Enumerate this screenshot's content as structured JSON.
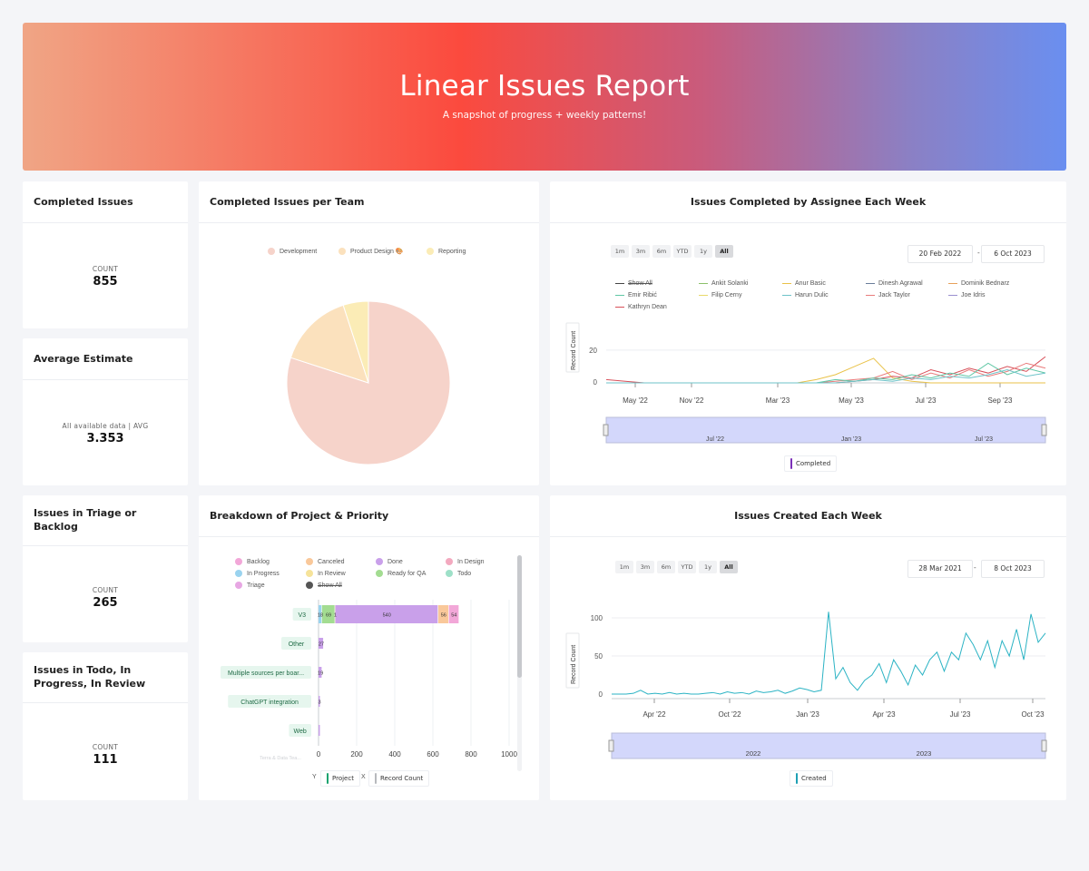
{
  "header": {
    "title": "Linear Issues Report",
    "subtitle": "A snapshot of progress + weekly patterns!"
  },
  "kpis": {
    "completed": {
      "title": "Completed Issues",
      "label": "COUNT",
      "value": "855"
    },
    "avg_estimate": {
      "title": "Average Estimate",
      "label": "All available data  |  AVG",
      "value": "3.353"
    },
    "triage": {
      "title": "Issues in Triage or Backlog",
      "label": "COUNT",
      "value": "265"
    },
    "todo": {
      "title": "Issues in Todo, In Progress, In Review",
      "label": "COUNT",
      "value": "111"
    }
  },
  "pie": {
    "title": "Completed Issues per Team",
    "legend": [
      "Development",
      "Product Design 🎨",
      "Reporting"
    ],
    "colors": [
      "#f6d3ca",
      "#fbe1bd",
      "#fbecb6"
    ],
    "chart_data": {
      "type": "pie",
      "labels": [
        "Development",
        "Product Design 🎨",
        "Reporting"
      ],
      "values": [
        80,
        15,
        5
      ]
    }
  },
  "assignee": {
    "title": "Issues Completed by Assignee Each Week",
    "range_buttons": [
      "1m",
      "3m",
      "6m",
      "YTD",
      "1y",
      "All"
    ],
    "date_from": "20 Feb 2022",
    "date_sep": "-",
    "date_to": "6 Oct 2023",
    "legend": [
      {
        "name": "Show All",
        "color": "#444444"
      },
      {
        "name": "Ankit Solanki",
        "color": "#8cc06a"
      },
      {
        "name": "Anur Basic",
        "color": "#e9c248"
      },
      {
        "name": "Dinesh Agrawal",
        "color": "#6a7d9a"
      },
      {
        "name": "Dominik Bednarz",
        "color": "#e7a05a"
      },
      {
        "name": "Emir Ribić",
        "color": "#5fc7a5"
      },
      {
        "name": "Filip Cerny",
        "color": "#e9d96a"
      },
      {
        "name": "Harun Dulic",
        "color": "#6dc3c9"
      },
      {
        "name": "Jack Taylor",
        "color": "#e97b7b"
      },
      {
        "name": "Joe Idris",
        "color": "#9a8fd0"
      },
      {
        "name": "Kathryn Dean",
        "color": "#d8505a"
      }
    ],
    "ylabel": "Record Count",
    "yticks": [
      "20",
      "0"
    ],
    "xticks": [
      "May '22",
      "Nov '22",
      "Mar '23",
      "May '23",
      "Jul '23",
      "Sep '23"
    ],
    "navigator_ticks": [
      "Jul '22",
      "Jan '23",
      "Jul '23"
    ],
    "series_chip": "Completed",
    "chart_data": {
      "type": "line",
      "ylim": [
        0,
        30
      ],
      "note": "weekly counts per assignee, Feb 2022 – Oct 2023",
      "series": [
        {
          "name": "Anur Basic",
          "values": [
            0,
            0,
            0,
            0,
            0,
            0,
            0,
            0,
            0,
            0,
            0,
            2,
            5,
            10,
            15,
            3,
            1,
            0,
            0,
            0,
            0,
            0,
            0,
            0
          ]
        },
        {
          "name": "Kathryn Dean",
          "values": [
            2,
            1,
            0,
            0,
            0,
            0,
            0,
            0,
            0,
            0,
            0,
            0,
            0,
            1,
            2,
            4,
            3,
            8,
            5,
            9,
            6,
            10,
            7,
            16
          ]
        },
        {
          "name": "Jack Taylor",
          "values": [
            0,
            0,
            0,
            0,
            0,
            0,
            0,
            0,
            0,
            0,
            0,
            0,
            1,
            2,
            3,
            7,
            2,
            6,
            3,
            8,
            4,
            7,
            12,
            9
          ]
        },
        {
          "name": "Emir Ribić",
          "values": [
            0,
            0,
            0,
            0,
            0,
            0,
            0,
            0,
            0,
            0,
            0,
            0,
            2,
            1,
            3,
            2,
            5,
            3,
            6,
            4,
            12,
            5,
            9,
            6
          ]
        },
        {
          "name": "Harun Dulic",
          "values": [
            0,
            0,
            0,
            0,
            0,
            0,
            0,
            0,
            0,
            0,
            0,
            0,
            0,
            1,
            2,
            1,
            3,
            2,
            4,
            3,
            5,
            8,
            4,
            6
          ]
        }
      ]
    }
  },
  "breakdown": {
    "title": "Breakdown of Project & Priority",
    "legend": [
      {
        "name": "Backlog",
        "color": "#f2a7d8"
      },
      {
        "name": "Canceled",
        "color": "#f9c89a"
      },
      {
        "name": "Done",
        "color": "#c9a0ea"
      },
      {
        "name": "In Design",
        "color": "#f3a9bf"
      },
      {
        "name": "In Progress",
        "color": "#9ad3ef"
      },
      {
        "name": "In Review",
        "color": "#f6e39a"
      },
      {
        "name": "Ready for QA",
        "color": "#a3dc91"
      },
      {
        "name": "Todo",
        "color": "#9ee0c8"
      },
      {
        "name": "Triage",
        "color": "#e7a7e3"
      },
      {
        "name": "Show All",
        "color": "#555555"
      }
    ],
    "projects": [
      "V3",
      "Other",
      "Multiple sources per boar...",
      "ChatGPT integration",
      "Web"
    ],
    "xticks": [
      "0",
      "200",
      "400",
      "600",
      "800",
      "1000"
    ],
    "v3_labels": [
      "18",
      "69",
      "1",
      "540",
      "56",
      "54"
    ],
    "other_label": "27",
    "multi_label": "19",
    "chatgpt_label": "3",
    "axis_y_label": "Y",
    "axis_y_chip": "Project",
    "axis_x_label": "X",
    "axis_x_chip": "Record Count",
    "faded_label": "Terra & Data Tea...",
    "chart_data": {
      "type": "bar",
      "categories": [
        "V3",
        "Other",
        "Multiple sources per boar...",
        "ChatGPT integration",
        "Web"
      ],
      "series": [
        {
          "name": "In Progress",
          "values": [
            18,
            0,
            0,
            0,
            0
          ]
        },
        {
          "name": "Ready for QA",
          "values": [
            69,
            0,
            0,
            0,
            0
          ]
        },
        {
          "name": "In Review",
          "values": [
            1,
            0,
            0,
            0,
            0
          ]
        },
        {
          "name": "Done",
          "values": [
            540,
            27,
            19,
            3,
            3
          ]
        },
        {
          "name": "Canceled",
          "values": [
            56,
            0,
            0,
            0,
            0
          ]
        },
        {
          "name": "Backlog",
          "values": [
            54,
            0,
            0,
            0,
            0
          ]
        }
      ],
      "xlim": [
        0,
        1000
      ]
    }
  },
  "created": {
    "title": "Issues Created  Each Week",
    "range_buttons": [
      "1m",
      "3m",
      "6m",
      "YTD",
      "1y",
      "All"
    ],
    "date_from": "28 Mar 2021",
    "date_sep": "-",
    "date_to": "8 Oct 2023",
    "ylabel": "Record Count",
    "yticks": [
      "100",
      "50",
      "0"
    ],
    "xticks": [
      "Apr '22",
      "Oct '22",
      "Jan '23",
      "Apr '23",
      "Jul '23",
      "Oct '23"
    ],
    "navigator_ticks": [
      "2022",
      "2023"
    ],
    "series_chip": "Created",
    "line_color": "#2bb3c4",
    "chart_data": {
      "type": "line",
      "ylim": [
        0,
        110
      ],
      "series": [
        {
          "name": "Created",
          "values": [
            0,
            0,
            0,
            1,
            5,
            0,
            1,
            0,
            2,
            0,
            1,
            0,
            0,
            1,
            2,
            0,
            3,
            1,
            2,
            0,
            4,
            2,
            3,
            5,
            1,
            4,
            8,
            6,
            3,
            5,
            108,
            20,
            35,
            15,
            5,
            18,
            25,
            40,
            15,
            45,
            30,
            12,
            38,
            25,
            45,
            55,
            30,
            55,
            45,
            80,
            65,
            45,
            70,
            35,
            70,
            50,
            85,
            45,
            105,
            68,
            80
          ]
        }
      ]
    }
  }
}
